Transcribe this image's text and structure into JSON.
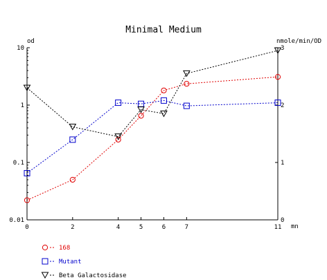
{
  "chart_data": {
    "type": "line",
    "title": "Minimal Medium",
    "y_left_unit": "od",
    "y_right_unit": "nmole/min/OD",
    "x_unit": "mn",
    "x_ticks": [
      "0",
      "2",
      "4",
      "5",
      "6",
      "7",
      "11"
    ],
    "y_left_ticks": [
      "10",
      "1",
      "0.1",
      "0.01"
    ],
    "y_right_ticks": [
      "3",
      "2",
      "1",
      "0"
    ],
    "xlim": [
      0,
      11
    ],
    "y_left_scale": "log",
    "y_left_lim": [
      0.01,
      10
    ],
    "y_right_lim": [
      0,
      3
    ],
    "grid": false,
    "legend_position": "bottom-left",
    "series": [
      {
        "name": "168",
        "axis": "left",
        "color": "#e00000",
        "marker": "circle",
        "x": [
          0,
          2,
          4,
          5,
          6,
          7,
          11
        ],
        "y": [
          0.022,
          0.05,
          0.25,
          0.65,
          1.8,
          2.35,
          3.1
        ]
      },
      {
        "name": "Mutant",
        "axis": "left",
        "color": "#0000cc",
        "marker": "square",
        "x": [
          0,
          2,
          4,
          5,
          6,
          7,
          11
        ],
        "y": [
          0.065,
          0.25,
          1.1,
          1.05,
          1.2,
          0.97,
          1.1
        ]
      },
      {
        "name": "Beta Galactosidase",
        "axis": "right",
        "color": "#000000",
        "marker": "triangle-down",
        "x": [
          0,
          2,
          4,
          5,
          6,
          7,
          11
        ],
        "y": [
          2.3,
          1.62,
          1.45,
          1.92,
          1.85,
          2.55,
          2.95
        ]
      }
    ]
  }
}
